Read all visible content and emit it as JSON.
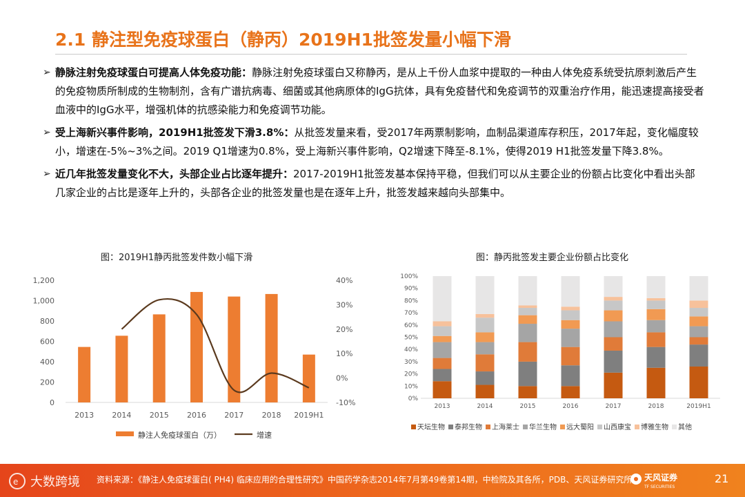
{
  "header": {
    "title": "2.1 静注型免疫球蛋白（静丙）2019H1批签发量小幅下滑"
  },
  "bullets": [
    {
      "bold": "静脉注射免疫球蛋白可提高人体免疫功能：",
      "text": "静脉注射免疫球蛋白又称静丙，是从上千份人血浆中提取的一种由人体免疫系统受抗原刺激后产生的免疫物质所制成的生物制剂，含有广谱抗病毒、细菌或其他病原体的IgG抗体，具有免疫替代和免疫调节的双重治疗作用，能迅速提高接受者血液中的IgG水平，增强机体的抗感染能力和免疫调节功能。"
    },
    {
      "bold": "受上海新兴事件影响，2019H1批签发下滑3.8%：",
      "text": "从批签发量来看，受2017年两票制影响，血制品渠道库存积压，2017年起，变化幅度较小，增速在-5%~3%之间。2019 Q1增速为0.8%，受上海新兴事件影响，Q2增速下降至-8.1%，使得2019 H1批签发量下降3.8%。"
    },
    {
      "bold": "近几年批签发量变化不大，头部企业占比逐年提升：",
      "text": "2017-2019H1批签发基本保持平稳，但我们可以从主要企业的份额占比变化中看出头部几家企业的占比是逐年上升的，头部各企业的批签发量也是在逐年上升，批签发越来越向头部集中。"
    }
  ],
  "chart_data": [
    {
      "type": "bar",
      "title": "图：2019H1静丙批签发件数小幅下滑",
      "categories": [
        "2013",
        "2014",
        "2015",
        "2016",
        "2017",
        "2018",
        "2019H1"
      ],
      "series": [
        {
          "name": "静注人免疫球蛋白（万）",
          "type": "bar",
          "axis": "left",
          "values": [
            545,
            655,
            865,
            1085,
            1040,
            1065,
            470
          ]
        },
        {
          "name": "增速",
          "type": "line",
          "axis": "right",
          "values": [
            null,
            20,
            32,
            26,
            -5,
            2,
            -4
          ]
        }
      ],
      "ylim_left": [
        0,
        1200
      ],
      "yticks_left": [
        "0",
        "200",
        "400",
        "600",
        "800",
        "1,000",
        "1,200"
      ],
      "ylim_right": [
        -10,
        40
      ],
      "yticks_right": [
        "-10%",
        "0%",
        "10%",
        "20%",
        "30%",
        "40%"
      ],
      "colors": {
        "bar": "#ED7D31",
        "line": "#5B3A1E"
      }
    },
    {
      "type": "bar",
      "stacked": true,
      "title": "图：静丙批签发主要企业份额占比变化",
      "categories": [
        "2013",
        "2014",
        "2015",
        "2016",
        "2017",
        "2018",
        "2019H1"
      ],
      "yticks": [
        "0%",
        "10%",
        "20%",
        "30%",
        "40%",
        "50%",
        "60%",
        "70%",
        "80%",
        "90%",
        "100%"
      ],
      "ylim": [
        0,
        100
      ],
      "series": [
        {
          "name": "天坛生物",
          "color": "#C55A11",
          "values": [
            14,
            11,
            10,
            10,
            21,
            25,
            26
          ]
        },
        {
          "name": "泰邦生物",
          "color": "#7F7F7F",
          "values": [
            10,
            11,
            20,
            17,
            18,
            17,
            18
          ]
        },
        {
          "name": "上海莱士",
          "color": "#E07B39",
          "values": [
            9,
            14,
            16,
            15,
            11,
            12,
            6
          ]
        },
        {
          "name": "华兰生物",
          "color": "#A5A5A5",
          "values": [
            13,
            10,
            15,
            15,
            13,
            10,
            9
          ]
        },
        {
          "name": "远大蜀阳",
          "color": "#F19A53",
          "values": [
            5,
            8,
            7,
            7,
            9,
            9,
            8
          ]
        },
        {
          "name": "山西康宝",
          "color": "#C7C7C7",
          "values": [
            8,
            12,
            6,
            8,
            8,
            7,
            7
          ]
        },
        {
          "name": "博雅生物",
          "color": "#F7C19B",
          "values": [
            4,
            3,
            2,
            3,
            3,
            2,
            6
          ]
        },
        {
          "name": "其他",
          "color": "#E7E6E6",
          "values": [
            37,
            31,
            24,
            25,
            17,
            18,
            20
          ]
        }
      ]
    }
  ],
  "footer": {
    "source": "资料来源：《静注人免疫球蛋白( PH4) 临床应用的合理性研究》中国药学杂志2014年7月第49卷第14期，中检院及其各所，PDB、天风证券研究所",
    "brand": "天风证券",
    "brand_en": "TF SECURITIES",
    "page": "21",
    "watermark": "大数跨境"
  }
}
